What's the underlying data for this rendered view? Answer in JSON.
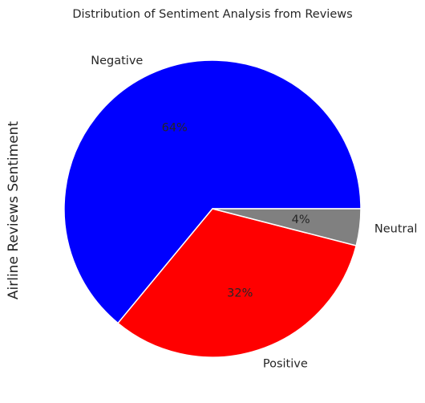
{
  "chart_data": {
    "type": "pie",
    "title": "Distribution of Sentiment Analysis from Reviews",
    "ylabel": "Airline Reviews Sentiment",
    "start_angle_deg": 0,
    "direction": "counterclockwise",
    "categories": [
      "Negative",
      "Positive",
      "Neutral"
    ],
    "values": [
      64,
      32,
      4
    ],
    "percent_labels": [
      "64%",
      "32%",
      "4%"
    ],
    "colors": [
      "#0000ff",
      "#ff0000",
      "#808080"
    ],
    "edge_color": "#ffffff",
    "legend": "none"
  }
}
